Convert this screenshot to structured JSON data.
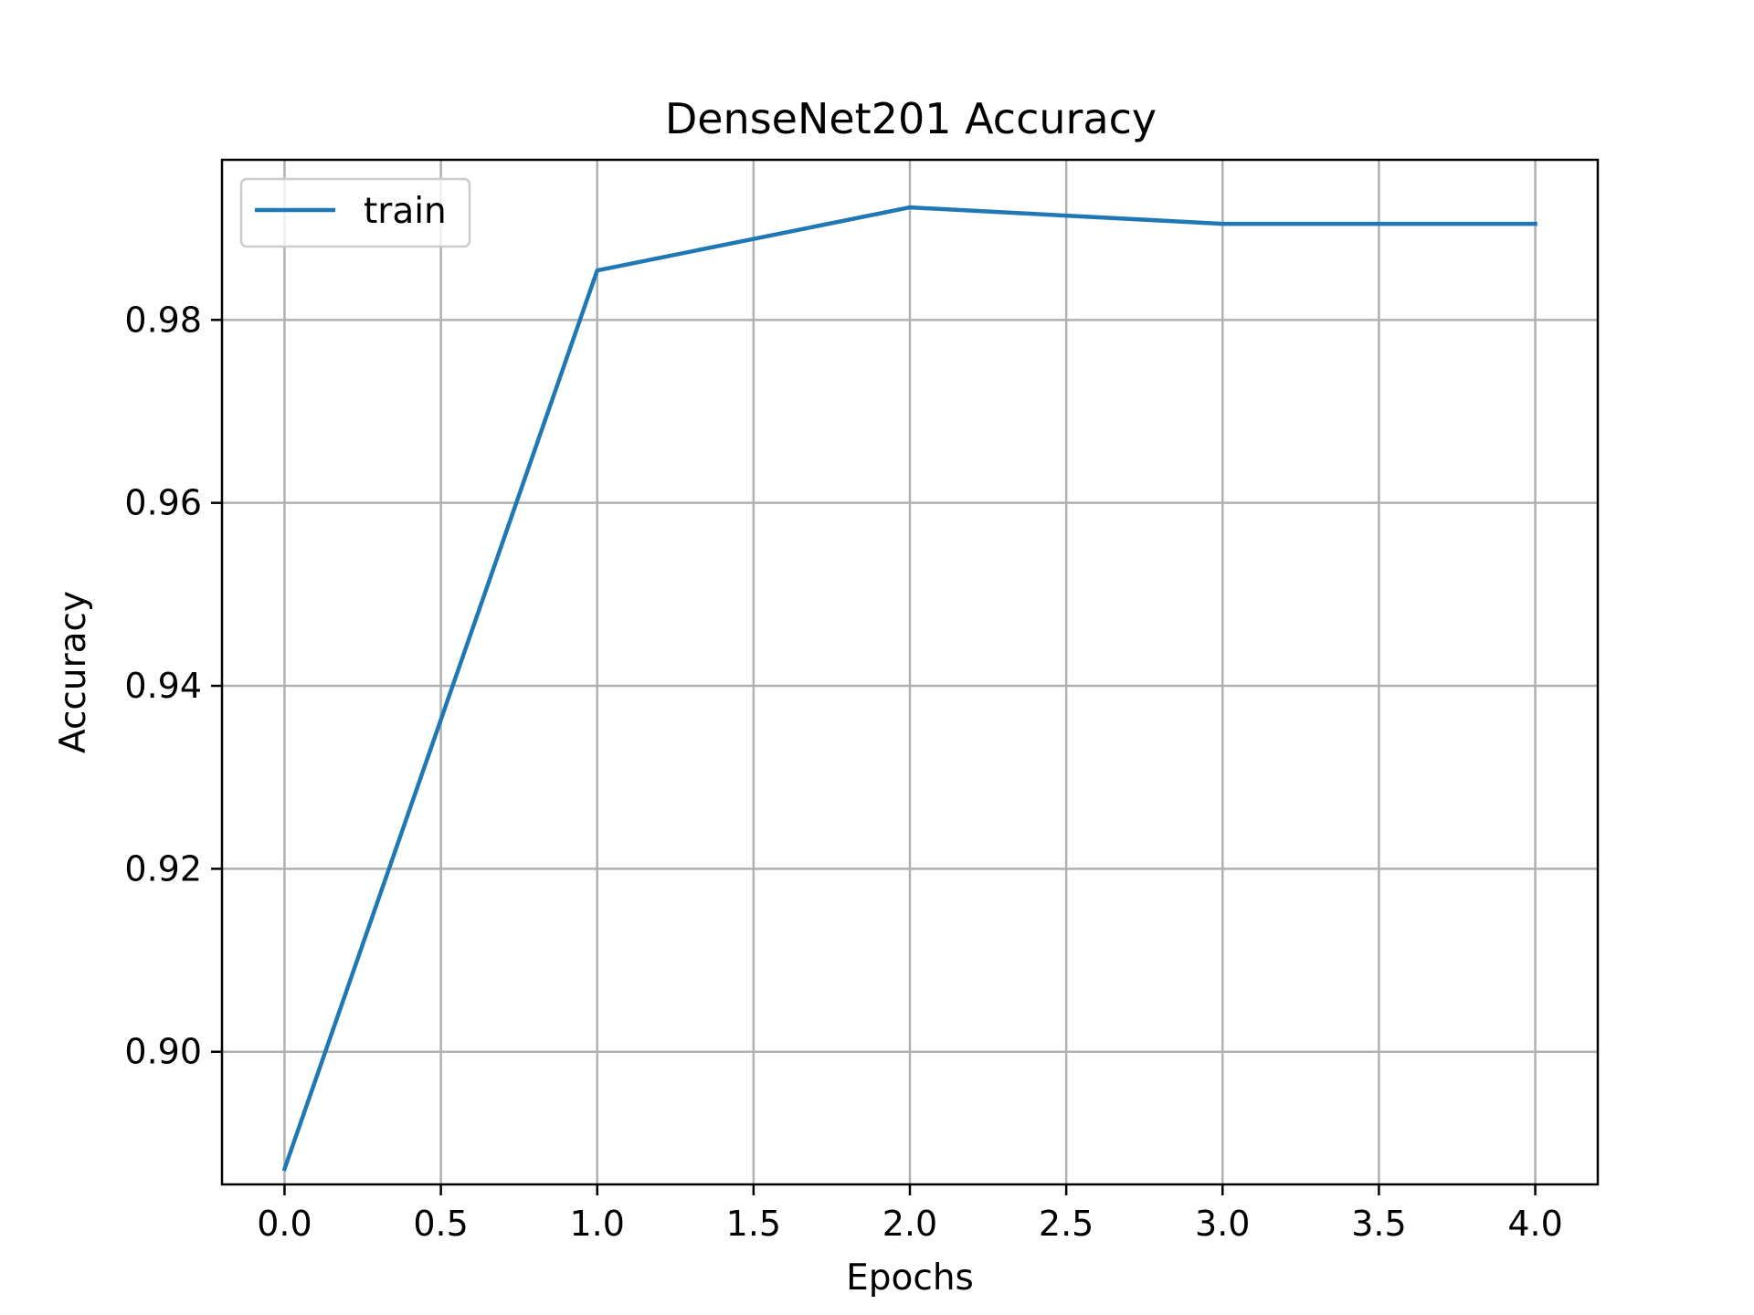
{
  "chart_data": {
    "type": "line",
    "title": "DenseNet201 Accuracy",
    "xlabel": "Epochs",
    "ylabel": "Accuracy",
    "xlim": [
      -0.2,
      4.2
    ],
    "ylim": [
      0.8855,
      0.9975
    ],
    "xticks": [
      "0.0",
      "0.5",
      "1.0",
      "1.5",
      "2.0",
      "2.5",
      "3.0",
      "3.5",
      "4.0"
    ],
    "xtick_values": [
      0.0,
      0.5,
      1.0,
      1.5,
      2.0,
      2.5,
      3.0,
      3.5,
      4.0
    ],
    "yticks": [
      "0.90",
      "0.92",
      "0.94",
      "0.96",
      "0.98"
    ],
    "ytick_values": [
      0.9,
      0.92,
      0.94,
      0.96,
      0.98
    ],
    "grid": true,
    "legend_position": "upper-left",
    "series": [
      {
        "name": "train",
        "color": "#1f77b4",
        "x": [
          0,
          1,
          2,
          3,
          4
        ],
        "y": [
          0.8872,
          0.9854,
          0.9923,
          0.9905,
          0.9905
        ]
      }
    ]
  }
}
